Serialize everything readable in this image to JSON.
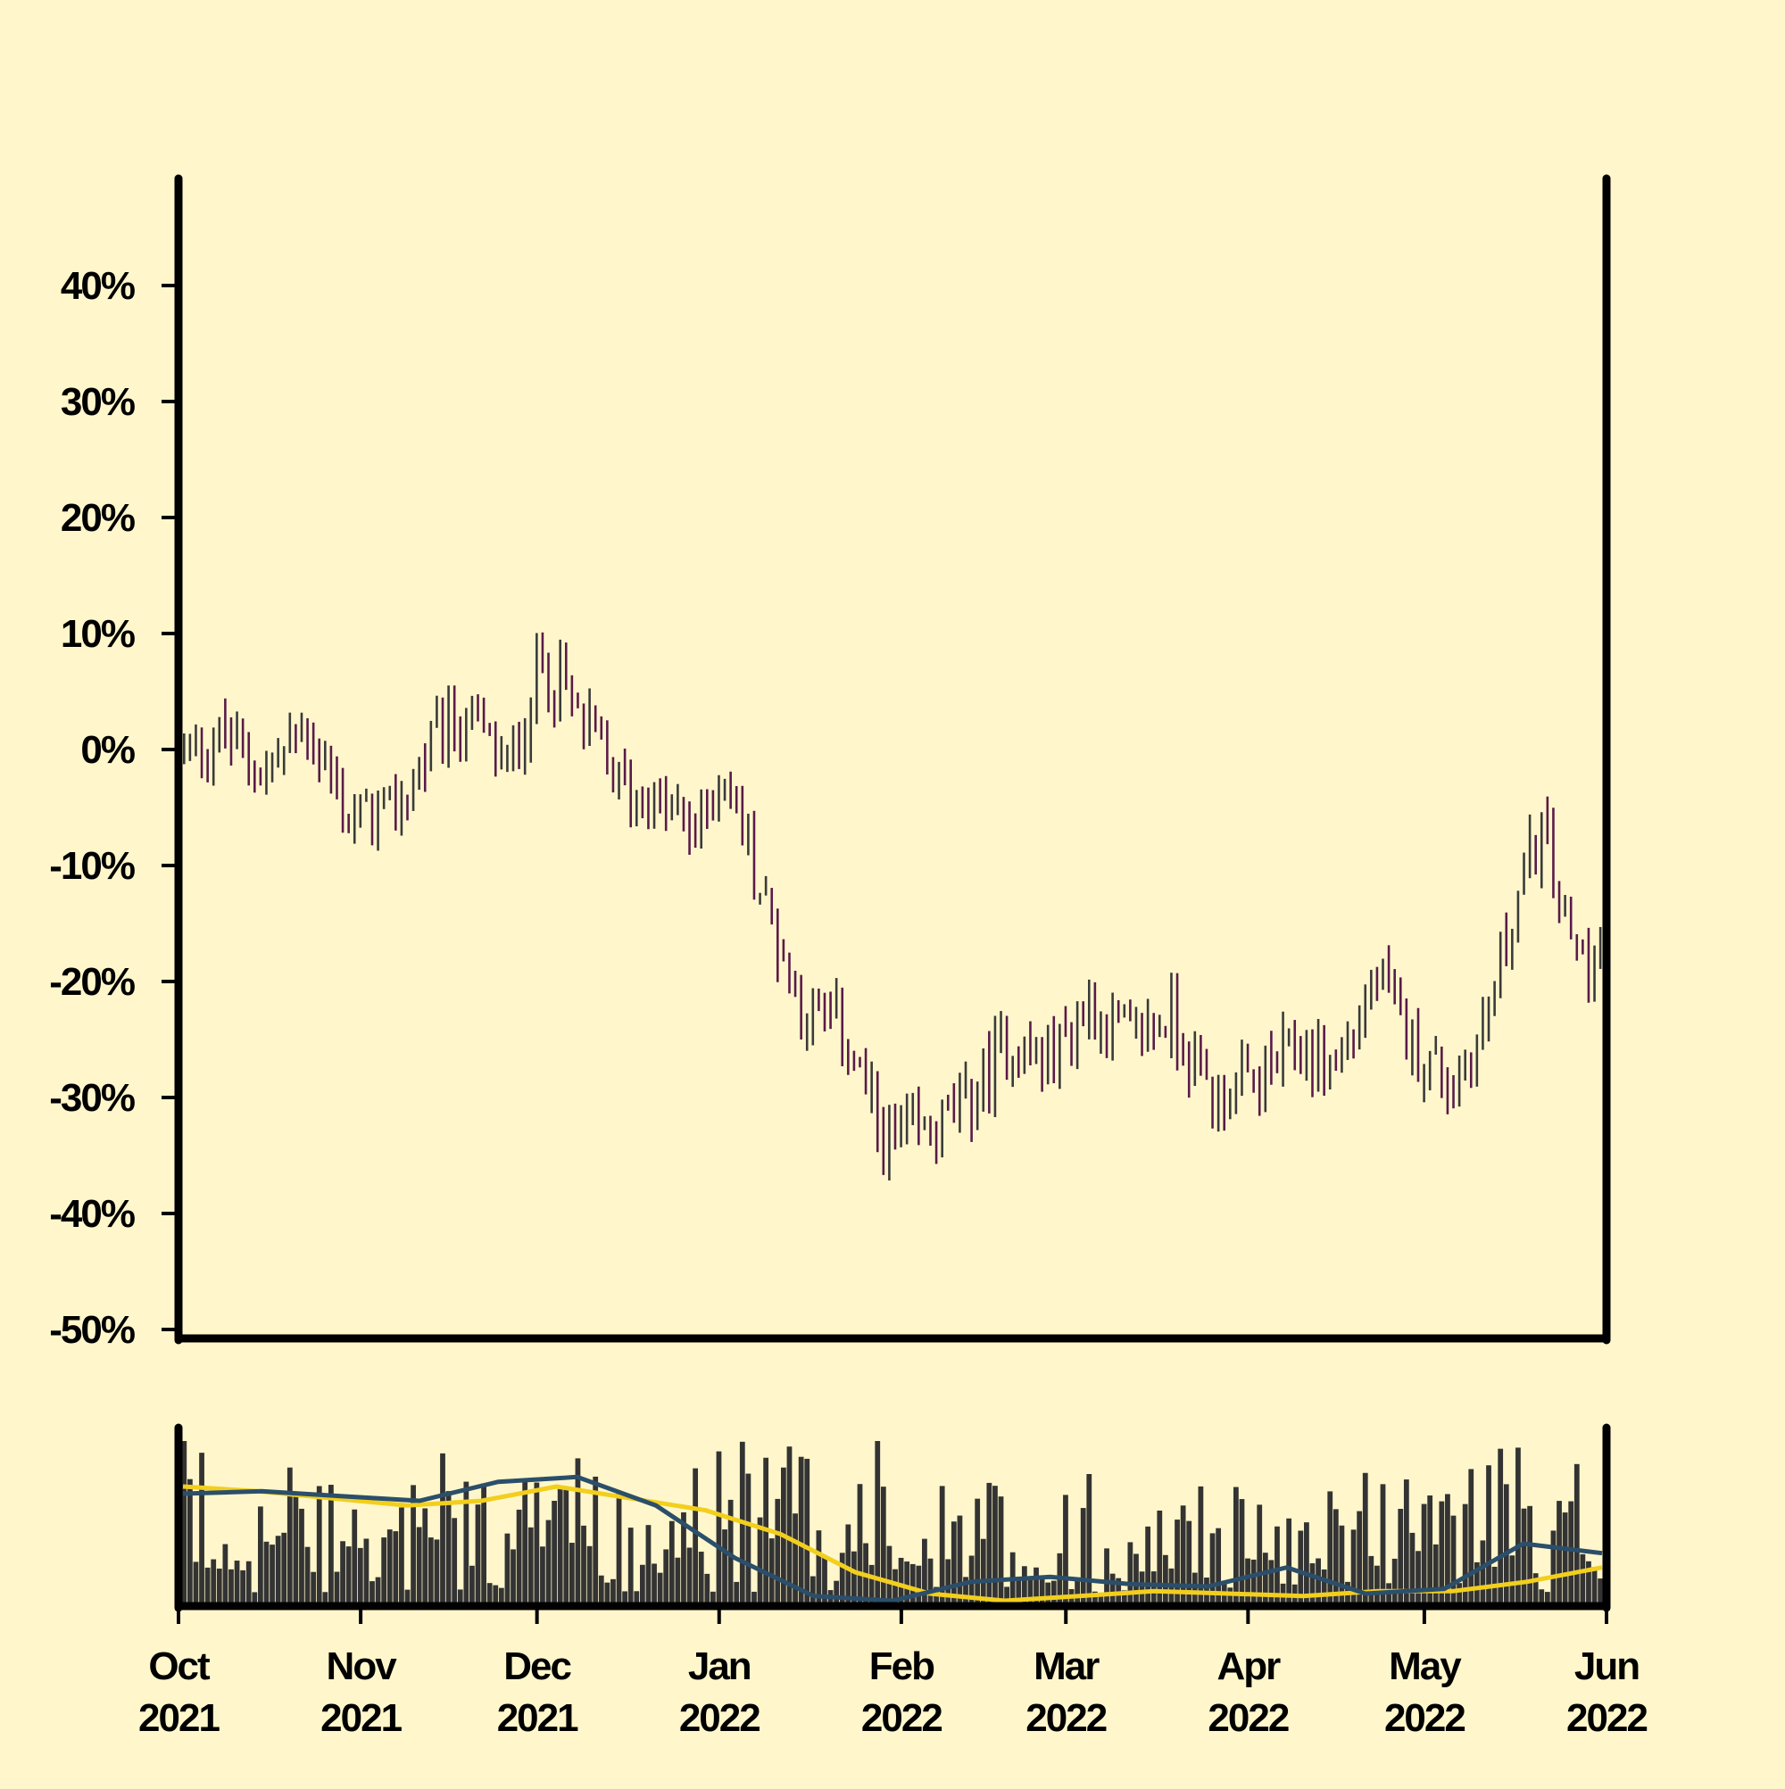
{
  "chart_data": [
    {
      "type": "ohlc",
      "title": "",
      "xlabel": "",
      "ylabel": "",
      "y_unit": "%",
      "ylim": [
        -50,
        50
      ],
      "yticks": [
        {
          "value": 40,
          "label": "40%"
        },
        {
          "value": 30,
          "label": "30%"
        },
        {
          "value": 20,
          "label": "20%"
        },
        {
          "value": 10,
          "label": "10%"
        },
        {
          "value": 0,
          "label": "0%"
        },
        {
          "value": -10,
          "label": "-10%"
        },
        {
          "value": -20,
          "label": "-20%"
        },
        {
          "value": -30,
          "label": "-30%"
        },
        {
          "value": -40,
          "label": "-40%"
        },
        {
          "value": -50,
          "label": "-50%"
        }
      ],
      "xlim": [
        "2021-10-01",
        "2022-06-01"
      ],
      "grid": false,
      "colors": {
        "up": "#3a3a3a",
        "down": "#5a1a4a"
      },
      "trend_anchors": [
        {
          "date": "2021-10-01",
          "value": 0
        },
        {
          "date": "2021-10-08",
          "value": 1
        },
        {
          "date": "2021-10-15",
          "value": -2
        },
        {
          "date": "2021-10-22",
          "value": 2
        },
        {
          "date": "2021-10-29",
          "value": -6
        },
        {
          "date": "2021-11-05",
          "value": -6
        },
        {
          "date": "2021-11-12",
          "value": 0
        },
        {
          "date": "2021-11-18",
          "value": 3
        },
        {
          "date": "2021-11-25",
          "value": -2
        },
        {
          "date": "2021-12-01",
          "value": 8
        },
        {
          "date": "2021-12-07",
          "value": 3
        },
        {
          "date": "2021-12-14",
          "value": -3
        },
        {
          "date": "2021-12-21",
          "value": -5
        },
        {
          "date": "2021-12-27",
          "value": -7
        },
        {
          "date": "2022-01-01",
          "value": -2
        },
        {
          "date": "2022-01-07",
          "value": -12
        },
        {
          "date": "2022-01-14",
          "value": -22
        },
        {
          "date": "2022-01-21",
          "value": -24
        },
        {
          "date": "2022-01-28",
          "value": -34
        },
        {
          "date": "2022-02-04",
          "value": -33
        },
        {
          "date": "2022-02-11",
          "value": -31
        },
        {
          "date": "2022-02-18",
          "value": -25
        },
        {
          "date": "2022-02-25",
          "value": -27
        },
        {
          "date": "2022-03-04",
          "value": -22
        },
        {
          "date": "2022-03-11",
          "value": -25
        },
        {
          "date": "2022-03-18",
          "value": -23
        },
        {
          "date": "2022-03-25",
          "value": -30
        },
        {
          "date": "2022-04-01",
          "value": -29
        },
        {
          "date": "2022-04-08",
          "value": -26
        },
        {
          "date": "2022-04-15",
          "value": -27
        },
        {
          "date": "2022-04-22",
          "value": -20
        },
        {
          "date": "2022-04-29",
          "value": -26
        },
        {
          "date": "2022-05-05",
          "value": -29
        },
        {
          "date": "2022-05-10",
          "value": -24
        },
        {
          "date": "2022-05-15",
          "value": -14
        },
        {
          "date": "2022-05-20",
          "value": -7
        },
        {
          "date": "2022-05-25",
          "value": -17
        },
        {
          "date": "2022-06-01",
          "value": -18
        }
      ]
    },
    {
      "type": "bar",
      "title": "",
      "description": "volume panel",
      "colors": {
        "bars": "#333333",
        "ma_short": "#2b4f6b",
        "ma_long": "#f2cf1d"
      },
      "series": [
        {
          "role": "volume",
          "values": "daily volume bars (unlabeled axis)"
        },
        {
          "role": "moving-average-short",
          "trend": [
            45,
            46,
            44,
            42,
            50,
            52,
            40,
            18,
            2,
            0,
            8,
            10,
            7,
            6,
            14,
            3,
            5,
            24,
            20
          ]
        },
        {
          "role": "moving-average-long",
          "trend": [
            48,
            46,
            43,
            40,
            42,
            48,
            43,
            38,
            28,
            12,
            3,
            0,
            2,
            4,
            3,
            2,
            4,
            4,
            8,
            14
          ]
        }
      ]
    }
  ],
  "xticks": [
    {
      "month": "Oct",
      "year": "2021",
      "date": "2021-10-01"
    },
    {
      "month": "Nov",
      "year": "2021",
      "date": "2021-11-01"
    },
    {
      "month": "Dec",
      "year": "2021",
      "date": "2021-12-01"
    },
    {
      "month": "Jan",
      "year": "2022",
      "date": "2022-01-01"
    },
    {
      "month": "Feb",
      "year": "2022",
      "date": "2022-02-01"
    },
    {
      "month": "Mar",
      "year": "2022",
      "date": "2022-03-01"
    },
    {
      "month": "Apr",
      "year": "2022",
      "date": "2022-04-01"
    },
    {
      "month": "May",
      "year": "2022",
      "date": "2022-05-01"
    },
    {
      "month": "Jun",
      "year": "2022",
      "date": "2022-06-01"
    }
  ]
}
